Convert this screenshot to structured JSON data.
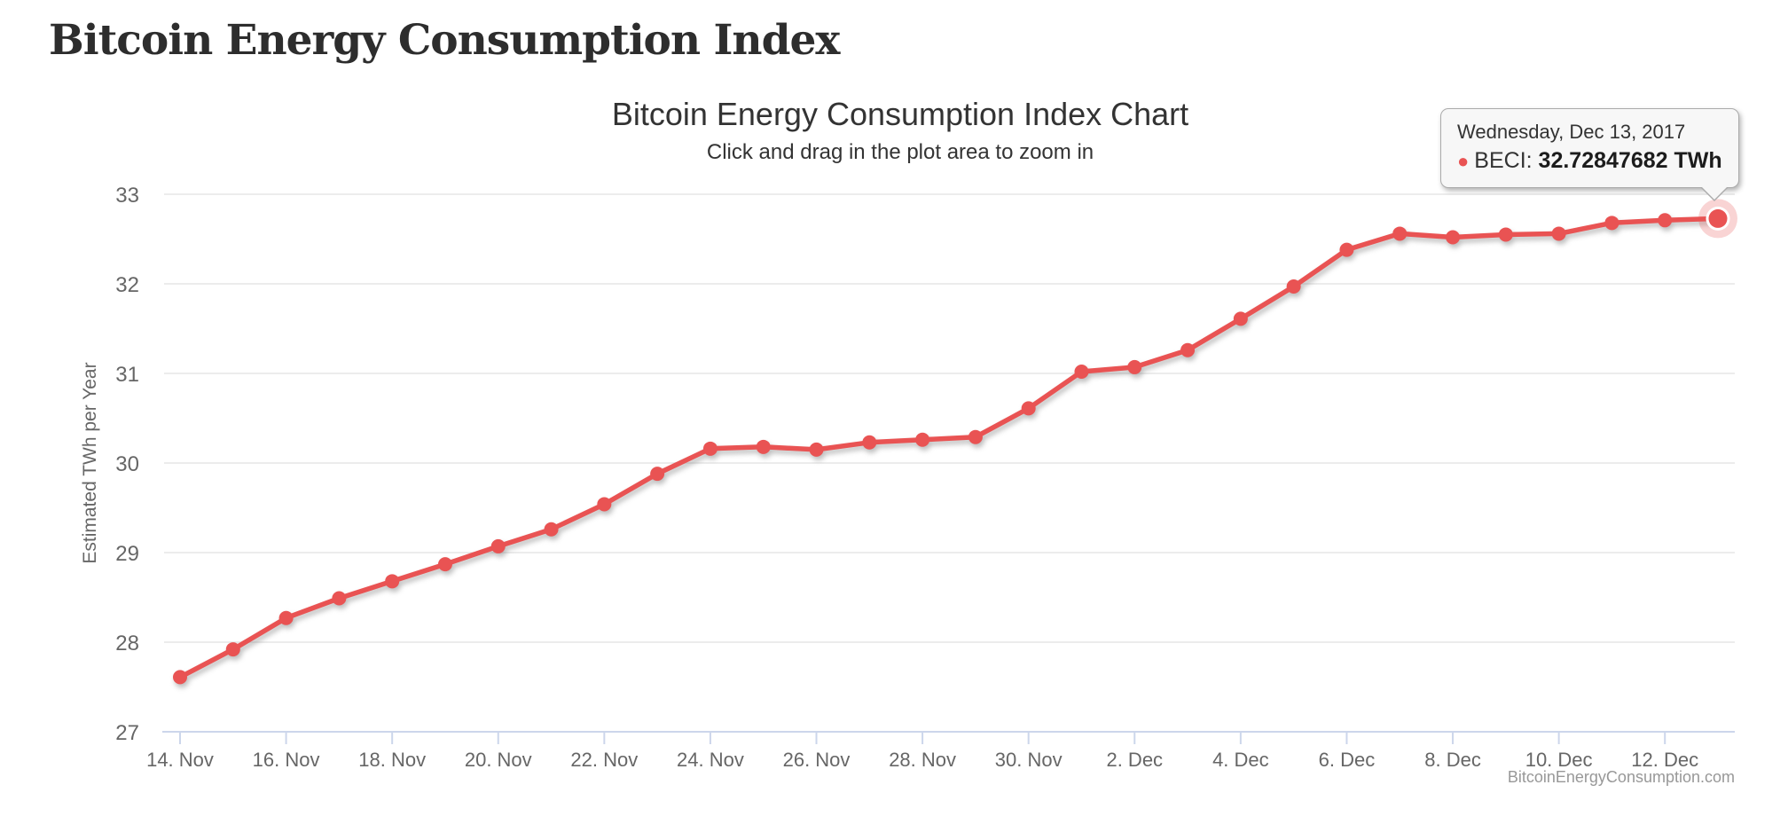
{
  "page": {
    "title": "Bitcoin Energy Consumption Index"
  },
  "chart": {
    "title": "Bitcoin Energy Consumption Index Chart",
    "subtitle": "Click and drag in the plot area to zoom in",
    "y_axis_title": "Estimated TWh per Year",
    "credit": "BitcoinEnergyConsumption.com",
    "tooltip": {
      "date": "Wednesday, Dec 13, 2017",
      "bullet": "●",
      "label": "BECI:",
      "value": "32.72847682 TWh"
    },
    "colors": {
      "series": "#e95353",
      "halo": "rgba(233,83,83,0.25)",
      "grid": "#e6e6e6",
      "axis_line": "#ccd6eb",
      "axis_label": "#666666",
      "credit": "#989898",
      "title": "#333333",
      "tooltip_bg": "#f7f7f7",
      "tooltip_border": "#ababab"
    }
  },
  "chart_data": {
    "type": "line",
    "title": "Bitcoin Energy Consumption Index Chart",
    "subtitle": "Click and drag in the plot area to zoom in",
    "xlabel": "",
    "ylabel": "Estimated TWh per Year",
    "ylim": [
      27,
      33
    ],
    "y_ticks": [
      27,
      28,
      29,
      30,
      31,
      32,
      33
    ],
    "grid": "horizontal",
    "legend": false,
    "x": [
      "Nov 14",
      "Nov 15",
      "Nov 16",
      "Nov 17",
      "Nov 18",
      "Nov 19",
      "Nov 20",
      "Nov 21",
      "Nov 22",
      "Nov 23",
      "Nov 24",
      "Nov 25",
      "Nov 26",
      "Nov 27",
      "Nov 28",
      "Nov 29",
      "Nov 30",
      "Dec 1",
      "Dec 2",
      "Dec 3",
      "Dec 4",
      "Dec 5",
      "Dec 6",
      "Dec 7",
      "Dec 8",
      "Dec 9",
      "Dec 10",
      "Dec 11",
      "Dec 12",
      "Dec 13"
    ],
    "x_tick_labels": [
      "14. Nov",
      "16. Nov",
      "18. Nov",
      "20. Nov",
      "22. Nov",
      "24. Nov",
      "26. Nov",
      "28. Nov",
      "30. Nov",
      "2. Dec",
      "4. Dec",
      "6. Dec",
      "8. Dec",
      "10. Dec",
      "12. Dec"
    ],
    "x_tick_every": 2,
    "series": [
      {
        "name": "BECI",
        "unit": "TWh",
        "values": [
          27.61,
          27.92,
          28.27,
          28.49,
          28.68,
          28.87,
          29.07,
          29.26,
          29.54,
          29.88,
          30.16,
          30.18,
          30.15,
          30.23,
          30.26,
          30.29,
          30.61,
          31.02,
          31.07,
          31.26,
          31.61,
          31.97,
          32.38,
          32.56,
          32.52,
          32.55,
          32.56,
          32.68,
          32.71,
          32.72847682
        ]
      }
    ],
    "highlighted_point": {
      "x": "Dec 13",
      "value": 32.72847682
    }
  }
}
